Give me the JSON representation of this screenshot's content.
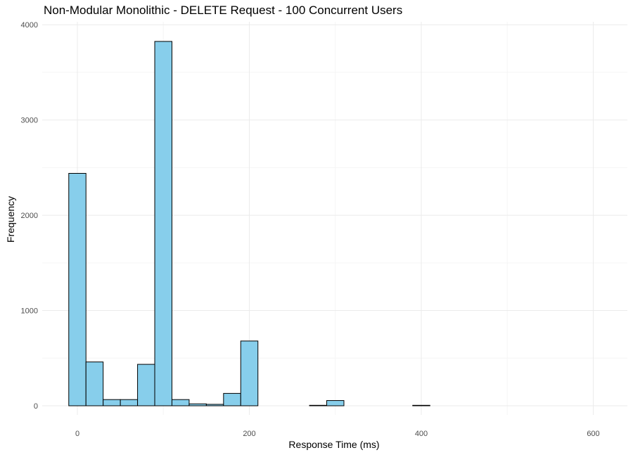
{
  "title": "Non-Modular Monolithic - DELETE Request - 100 Concurrent Users",
  "xlabel": "Response Time (ms)",
  "ylabel": "Frequency",
  "chart_data": {
    "type": "bar",
    "title": "Non-Modular Monolithic - DELETE Request - 100 Concurrent Users",
    "xlabel": "Response Time (ms)",
    "ylabel": "Frequency",
    "bin_width": 20,
    "bins": [
      {
        "x_start": -10,
        "x_end": 10,
        "count": 2440
      },
      {
        "x_start": 10,
        "x_end": 30,
        "count": 460
      },
      {
        "x_start": 30,
        "x_end": 50,
        "count": 65
      },
      {
        "x_start": 50,
        "x_end": 70,
        "count": 65
      },
      {
        "x_start": 70,
        "x_end": 90,
        "count": 435
      },
      {
        "x_start": 90,
        "x_end": 110,
        "count": 3825
      },
      {
        "x_start": 110,
        "x_end": 130,
        "count": 65
      },
      {
        "x_start": 130,
        "x_end": 150,
        "count": 20
      },
      {
        "x_start": 150,
        "x_end": 170,
        "count": 15
      },
      {
        "x_start": 170,
        "x_end": 190,
        "count": 130
      },
      {
        "x_start": 190,
        "x_end": 210,
        "count": 680
      },
      {
        "x_start": 210,
        "x_end": 230,
        "count": 0
      },
      {
        "x_start": 230,
        "x_end": 250,
        "count": 0
      },
      {
        "x_start": 250,
        "x_end": 270,
        "count": 0
      },
      {
        "x_start": 270,
        "x_end": 290,
        "count": 5
      },
      {
        "x_start": 290,
        "x_end": 310,
        "count": 55
      },
      {
        "x_start": 310,
        "x_end": 330,
        "count": 0
      },
      {
        "x_start": 330,
        "x_end": 350,
        "count": 0
      },
      {
        "x_start": 350,
        "x_end": 370,
        "count": 0
      },
      {
        "x_start": 370,
        "x_end": 390,
        "count": 0
      },
      {
        "x_start": 390,
        "x_end": 410,
        "count": 5
      },
      {
        "x_start": 410,
        "x_end": 430,
        "count": 0
      },
      {
        "x_start": 430,
        "x_end": 450,
        "count": 0
      },
      {
        "x_start": 450,
        "x_end": 470,
        "count": 0
      },
      {
        "x_start": 470,
        "x_end": 490,
        "count": 0
      },
      {
        "x_start": 490,
        "x_end": 510,
        "count": 0
      },
      {
        "x_start": 510,
        "x_end": 530,
        "count": 0
      },
      {
        "x_start": 530,
        "x_end": 550,
        "count": 0
      },
      {
        "x_start": 550,
        "x_end": 570,
        "count": 0
      },
      {
        "x_start": 570,
        "x_end": 590,
        "count": 0
      },
      {
        "x_start": 590,
        "x_end": 610,
        "count": 0
      }
    ],
    "x_ticks": [
      "0",
      "200",
      "400",
      "600"
    ],
    "x_tick_values": [
      0,
      200,
      400,
      600
    ],
    "y_ticks": [
      "0",
      "1000",
      "2000",
      "3000",
      "4000"
    ],
    "y_tick_values": [
      0,
      1000,
      2000,
      3000,
      4000
    ],
    "xlim": [
      -40,
      640
    ],
    "ylim": [
      0,
      4000
    ],
    "grid": true,
    "legend": "none",
    "colors": {
      "bar_fill": "#87CEEB",
      "bar_stroke": "#000000",
      "grid_major": "#ebebeb",
      "grid_minor": "#f5f5f5",
      "tick_text": "#4d4d4d"
    }
  }
}
